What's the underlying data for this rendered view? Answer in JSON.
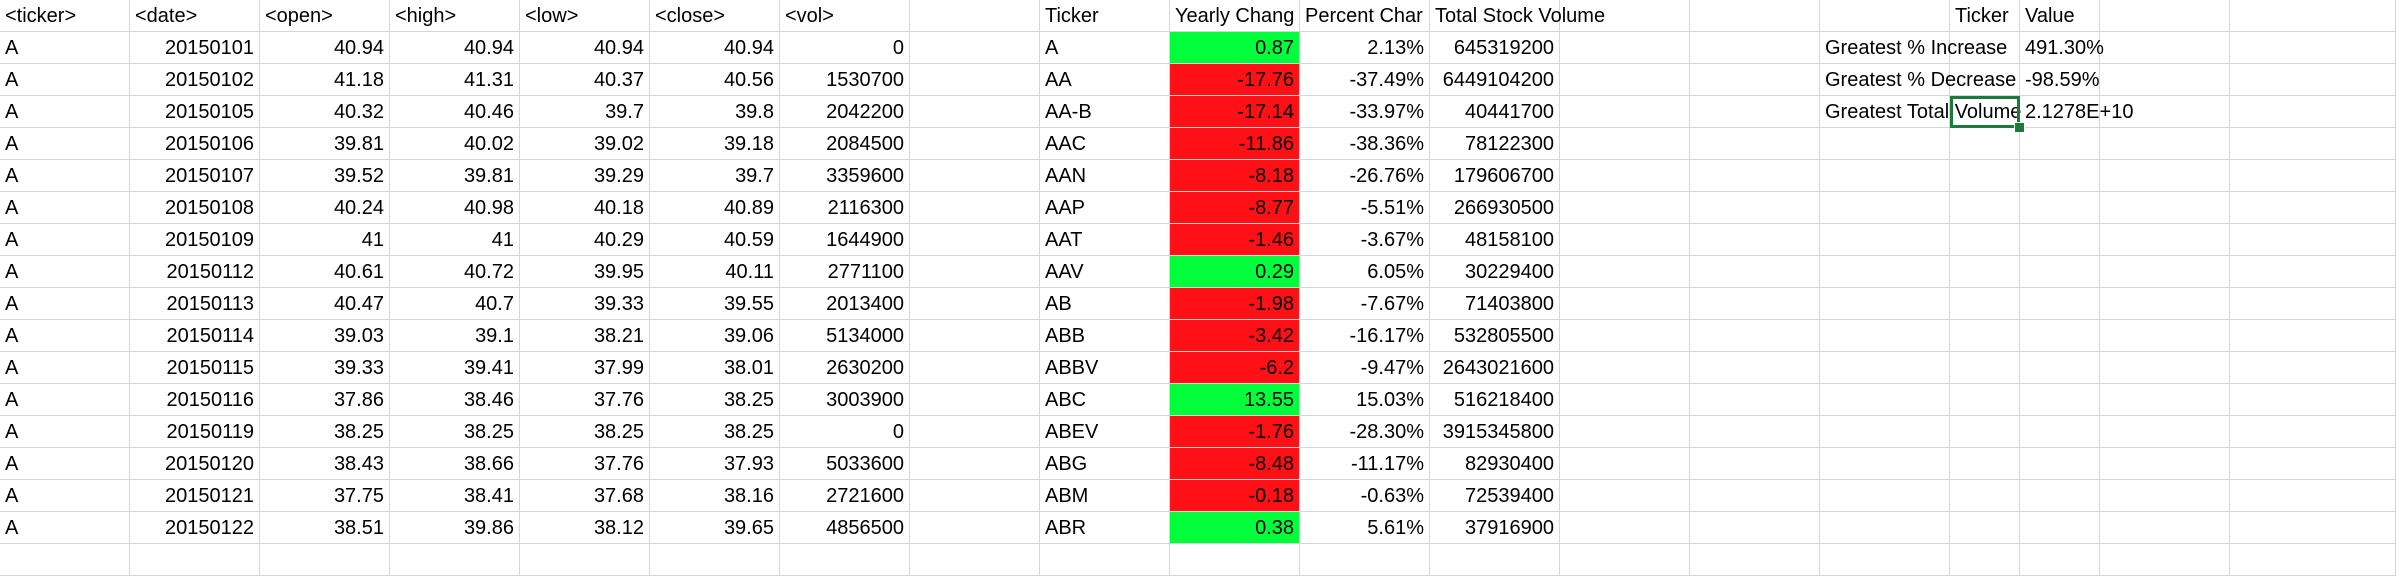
{
  "raw": {
    "headers": [
      "<ticker>",
      "<date>",
      "<open>",
      "<high>",
      "<low>",
      "<close>",
      "<vol>"
    ],
    "rows": [
      [
        "A",
        "20150101",
        "40.94",
        "40.94",
        "40.94",
        "40.94",
        "0"
      ],
      [
        "A",
        "20150102",
        "41.18",
        "41.31",
        "40.37",
        "40.56",
        "1530700"
      ],
      [
        "A",
        "20150105",
        "40.32",
        "40.46",
        "39.7",
        "39.8",
        "2042200"
      ],
      [
        "A",
        "20150106",
        "39.81",
        "40.02",
        "39.02",
        "39.18",
        "2084500"
      ],
      [
        "A",
        "20150107",
        "39.52",
        "39.81",
        "39.29",
        "39.7",
        "3359600"
      ],
      [
        "A",
        "20150108",
        "40.24",
        "40.98",
        "40.18",
        "40.89",
        "2116300"
      ],
      [
        "A",
        "20150109",
        "41",
        "41",
        "40.29",
        "40.59",
        "1644900"
      ],
      [
        "A",
        "20150112",
        "40.61",
        "40.72",
        "39.95",
        "40.11",
        "2771100"
      ],
      [
        "A",
        "20150113",
        "40.47",
        "40.7",
        "39.33",
        "39.55",
        "2013400"
      ],
      [
        "A",
        "20150114",
        "39.03",
        "39.1",
        "38.21",
        "39.06",
        "5134000"
      ],
      [
        "A",
        "20150115",
        "39.33",
        "39.41",
        "37.99",
        "38.01",
        "2630200"
      ],
      [
        "A",
        "20150116",
        "37.86",
        "38.46",
        "37.76",
        "38.25",
        "3003900"
      ],
      [
        "A",
        "20150119",
        "38.25",
        "38.25",
        "38.25",
        "38.25",
        "0"
      ],
      [
        "A",
        "20150120",
        "38.43",
        "38.66",
        "37.76",
        "37.93",
        "5033600"
      ],
      [
        "A",
        "20150121",
        "37.75",
        "38.41",
        "37.68",
        "38.16",
        "2721600"
      ],
      [
        "A",
        "20150122",
        "38.51",
        "39.86",
        "38.12",
        "39.65",
        "4856500"
      ]
    ]
  },
  "summary": {
    "headers": [
      "Ticker",
      "Yearly Chang",
      "Percent Char",
      "Total Stock Volume"
    ],
    "rows": [
      {
        "ticker": "A",
        "change": "0.87",
        "pct": "2.13%",
        "vol": "645319200",
        "status": "green"
      },
      {
        "ticker": "AA",
        "change": "-17.76",
        "pct": "-37.49%",
        "vol": "6449104200",
        "status": "red"
      },
      {
        "ticker": "AA-B",
        "change": "-17.14",
        "pct": "-33.97%",
        "vol": "40441700",
        "status": "red"
      },
      {
        "ticker": "AAC",
        "change": "-11.86",
        "pct": "-38.36%",
        "vol": "78122300",
        "status": "red"
      },
      {
        "ticker": "AAN",
        "change": "-8.18",
        "pct": "-26.76%",
        "vol": "179606700",
        "status": "red"
      },
      {
        "ticker": "AAP",
        "change": "-8.77",
        "pct": "-5.51%",
        "vol": "266930500",
        "status": "red"
      },
      {
        "ticker": "AAT",
        "change": "-1.46",
        "pct": "-3.67%",
        "vol": "48158100",
        "status": "red"
      },
      {
        "ticker": "AAV",
        "change": "0.29",
        "pct": "6.05%",
        "vol": "30229400",
        "status": "green"
      },
      {
        "ticker": "AB",
        "change": "-1.98",
        "pct": "-7.67%",
        "vol": "71403800",
        "status": "red"
      },
      {
        "ticker": "ABB",
        "change": "-3.42",
        "pct": "-16.17%",
        "vol": "532805500",
        "status": "red"
      },
      {
        "ticker": "ABBV",
        "change": "-6.2",
        "pct": "-9.47%",
        "vol": "2643021600",
        "status": "red"
      },
      {
        "ticker": "ABC",
        "change": "13.55",
        "pct": "15.03%",
        "vol": "516218400",
        "status": "green"
      },
      {
        "ticker": "ABEV",
        "change": "-1.76",
        "pct": "-28.30%",
        "vol": "3915345800",
        "status": "red"
      },
      {
        "ticker": "ABG",
        "change": "-8.48",
        "pct": "-11.17%",
        "vol": "82930400",
        "status": "red"
      },
      {
        "ticker": "ABM",
        "change": "-0.18",
        "pct": "-0.63%",
        "vol": "72539400",
        "status": "red"
      },
      {
        "ticker": "ABR",
        "change": "0.38",
        "pct": "5.61%",
        "vol": "37916900",
        "status": "green"
      }
    ]
  },
  "greatest": {
    "headers": [
      "Ticker",
      "Value"
    ],
    "rows": [
      {
        "label": "Greatest % Increase",
        "ticker": "",
        "value": "491.30%"
      },
      {
        "label": "Greatest % Decrease",
        "ticker": "",
        "value": "-98.59%"
      },
      {
        "label": "Greatest Total Volume",
        "ticker": "",
        "value": "2.1278E+10"
      }
    ]
  },
  "colors": {
    "positive": "#00ff3a",
    "negative": "#ff0f16",
    "selection": "#1d7a3a",
    "gridline": "#d6d6d6"
  }
}
